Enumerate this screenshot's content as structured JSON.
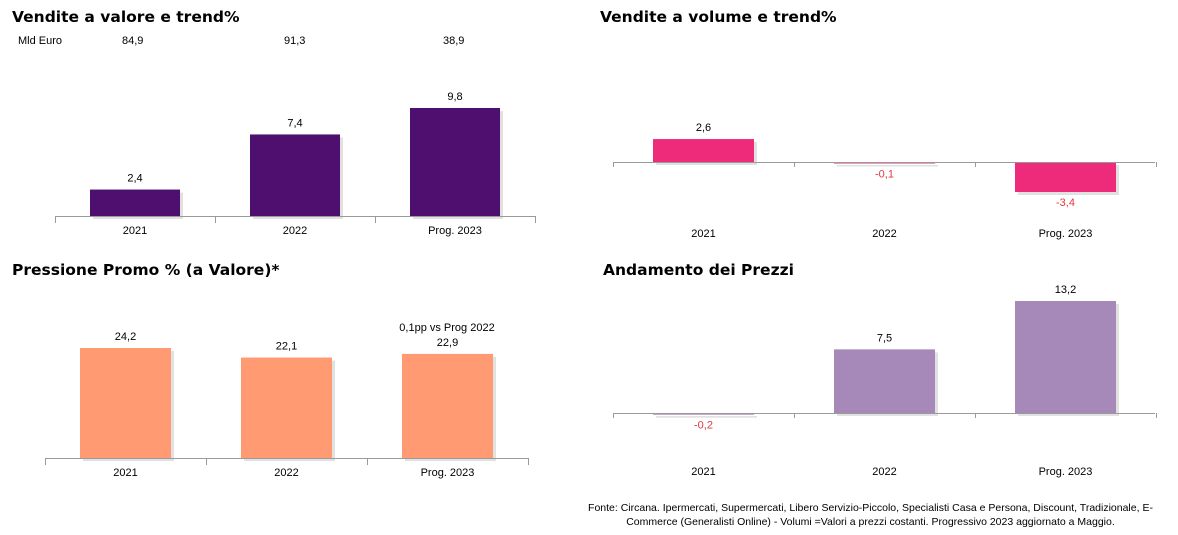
{
  "charts": {
    "valore": {
      "title": "Vendite a valore e trend%",
      "unit_label": "Mld Euro",
      "header_values": [
        "84,9",
        "91,3",
        "38,9"
      ]
    },
    "volume": {
      "title": "Vendite a volume e trend%"
    },
    "promo": {
      "title": "Pressione Promo % (a Valore)*",
      "annotation": "0,1pp  vs Prog 2022"
    },
    "prezzi": {
      "title": "Andamento dei Prezzi"
    }
  },
  "footnote": "Fonte: Circana. Ipermercati, Supermercati, Libero Servizio-Piccolo, Specialisti Casa e Persona, Discount, Tradizionale, E-Commerce (Generalisti Online) -  Volumi =Valori a prezzi costanti. Progressivo 2023 aggiornato a Maggio.",
  "chart_data": [
    {
      "type": "bar",
      "title": "Vendite a valore e trend%",
      "categories": [
        "2021",
        "2022",
        "Prog. 2023"
      ],
      "values": [
        2.4,
        7.4,
        9.8
      ],
      "labels": [
        "2,4",
        "7,4",
        "9,8"
      ],
      "ylim": [
        0,
        10
      ],
      "color": "#4e0f6e",
      "negative_label_color": "#e0393e",
      "grid": false,
      "legend": "none"
    },
    {
      "type": "bar",
      "title": "Vendite a volume e trend%",
      "categories": [
        "2021",
        "2022",
        "Prog. 2023"
      ],
      "values": [
        2.6,
        -0.1,
        -3.4
      ],
      "labels": [
        "2,6",
        "-0,1",
        "-3,4"
      ],
      "ylim": [
        -3.4,
        2.6
      ],
      "color": "#ee2a7b",
      "negative_label_color": "#e0393e",
      "grid": false,
      "legend": "none"
    },
    {
      "type": "bar",
      "title": "Pressione Promo % (a Valore)*",
      "categories": [
        "2021",
        "2022",
        "Prog. 2023"
      ],
      "values": [
        24.2,
        22.1,
        22.9
      ],
      "labels": [
        "24,2",
        "22,1",
        "22,9"
      ],
      "ylim": [
        0,
        24.2
      ],
      "color": "#ff9a73",
      "negative_label_color": "#e0393e",
      "grid": false,
      "legend": "none"
    },
    {
      "type": "bar",
      "title": "Andamento dei Prezzi",
      "categories": [
        "2021",
        "2022",
        "Prog. 2023"
      ],
      "values": [
        -0.2,
        7.5,
        13.2
      ],
      "labels": [
        "-0,2",
        "7,5",
        "13,2"
      ],
      "ylim": [
        -0.2,
        13.2
      ],
      "color": "#a689b9",
      "negative_label_color": "#e0393e",
      "grid": false,
      "legend": "none"
    }
  ]
}
